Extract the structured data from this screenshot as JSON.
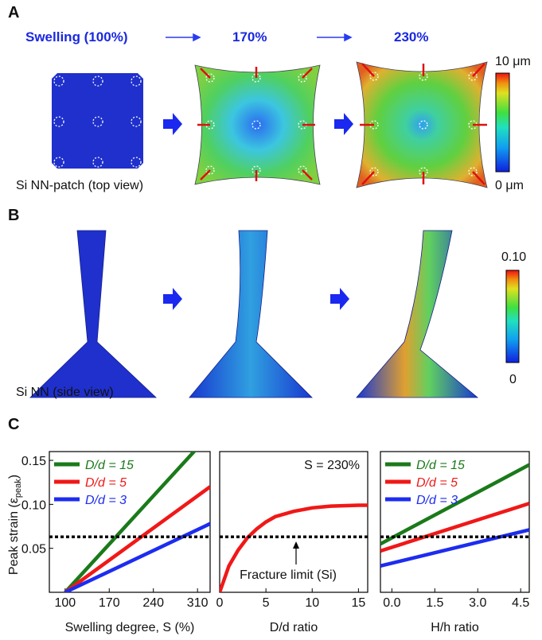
{
  "panels": {
    "a": {
      "label": "A",
      "steps": [
        "Swelling (100%)",
        "170%",
        "230%"
      ],
      "colorbar": [
        "10 μm",
        "0 μm"
      ],
      "caption": "Si NN-patch (top view)"
    },
    "b": {
      "label": "B",
      "colorbar": [
        "0.10",
        "0"
      ],
      "caption": "Si NN (side view)"
    },
    "c": {
      "label": "C",
      "ylabel": [
        "Peak strain (ε",
        "peak",
        ")"
      ]
    }
  },
  "chart_data": [
    {
      "type": "line",
      "xlabel": "Swelling degree, S (%)",
      "xlim": [
        75,
        330
      ],
      "ylim": [
        0,
        0.16
      ],
      "xticks": [
        100,
        170,
        240,
        310
      ],
      "yticks": [
        {
          "value": 0.05,
          "label": "0.05"
        },
        {
          "value": 0.1,
          "label": "0.10"
        },
        {
          "value": 0.15,
          "label": "0.15"
        }
      ],
      "reference_line": 0.063,
      "legend": true,
      "series": [
        {
          "name": "D/d = 15",
          "color": "#1a7a1a",
          "x": [
            100,
            330
          ],
          "values": [
            0,
            0.18
          ]
        },
        {
          "name": "D/d = 5",
          "color": "#f01818",
          "x": [
            100,
            330
          ],
          "values": [
            0,
            0.12
          ]
        },
        {
          "name": "D/d = 3",
          "color": "#1c2cf0",
          "x": [
            100,
            330
          ],
          "values": [
            0,
            0.078
          ]
        }
      ]
    },
    {
      "type": "line",
      "xlabel": "D/d ratio",
      "xlim": [
        0,
        16
      ],
      "ylim": [
        0,
        0.16
      ],
      "xticks": [
        0,
        5,
        10,
        15
      ],
      "reference_line": 0.063,
      "legend": false,
      "annotations": [
        "S = 230%",
        "Fracture limit (Si)"
      ],
      "series": [
        {
          "color": "#f01818",
          "x": [
            0,
            1,
            2,
            3,
            4,
            5,
            6,
            8,
            10,
            12,
            15,
            16
          ],
          "values": [
            0,
            0.03,
            0.048,
            0.062,
            0.072,
            0.08,
            0.086,
            0.092,
            0.096,
            0.098,
            0.099,
            0.099
          ]
        }
      ]
    },
    {
      "type": "line",
      "xlabel": "H/h ratio",
      "xlim": [
        -0.4,
        4.8
      ],
      "ylim": [
        0,
        0.16
      ],
      "xticks": [
        {
          "value": 0,
          "label": "0.0"
        },
        1.5,
        {
          "value": 3,
          "label": "3.0"
        },
        4.5
      ],
      "reference_line": 0.063,
      "legend": true,
      "series": [
        {
          "name": "D/d = 15",
          "color": "#1a7a1a",
          "x": [
            -0.4,
            4.8
          ],
          "values": [
            0.055,
            0.145
          ]
        },
        {
          "name": "D/d = 5",
          "color": "#f01818",
          "x": [
            -0.4,
            4.8
          ],
          "values": [
            0.047,
            0.101
          ]
        },
        {
          "name": "D/d = 3",
          "color": "#1c2cf0",
          "x": [
            -0.4,
            4.8
          ],
          "values": [
            0.03,
            0.071
          ]
        }
      ]
    }
  ]
}
